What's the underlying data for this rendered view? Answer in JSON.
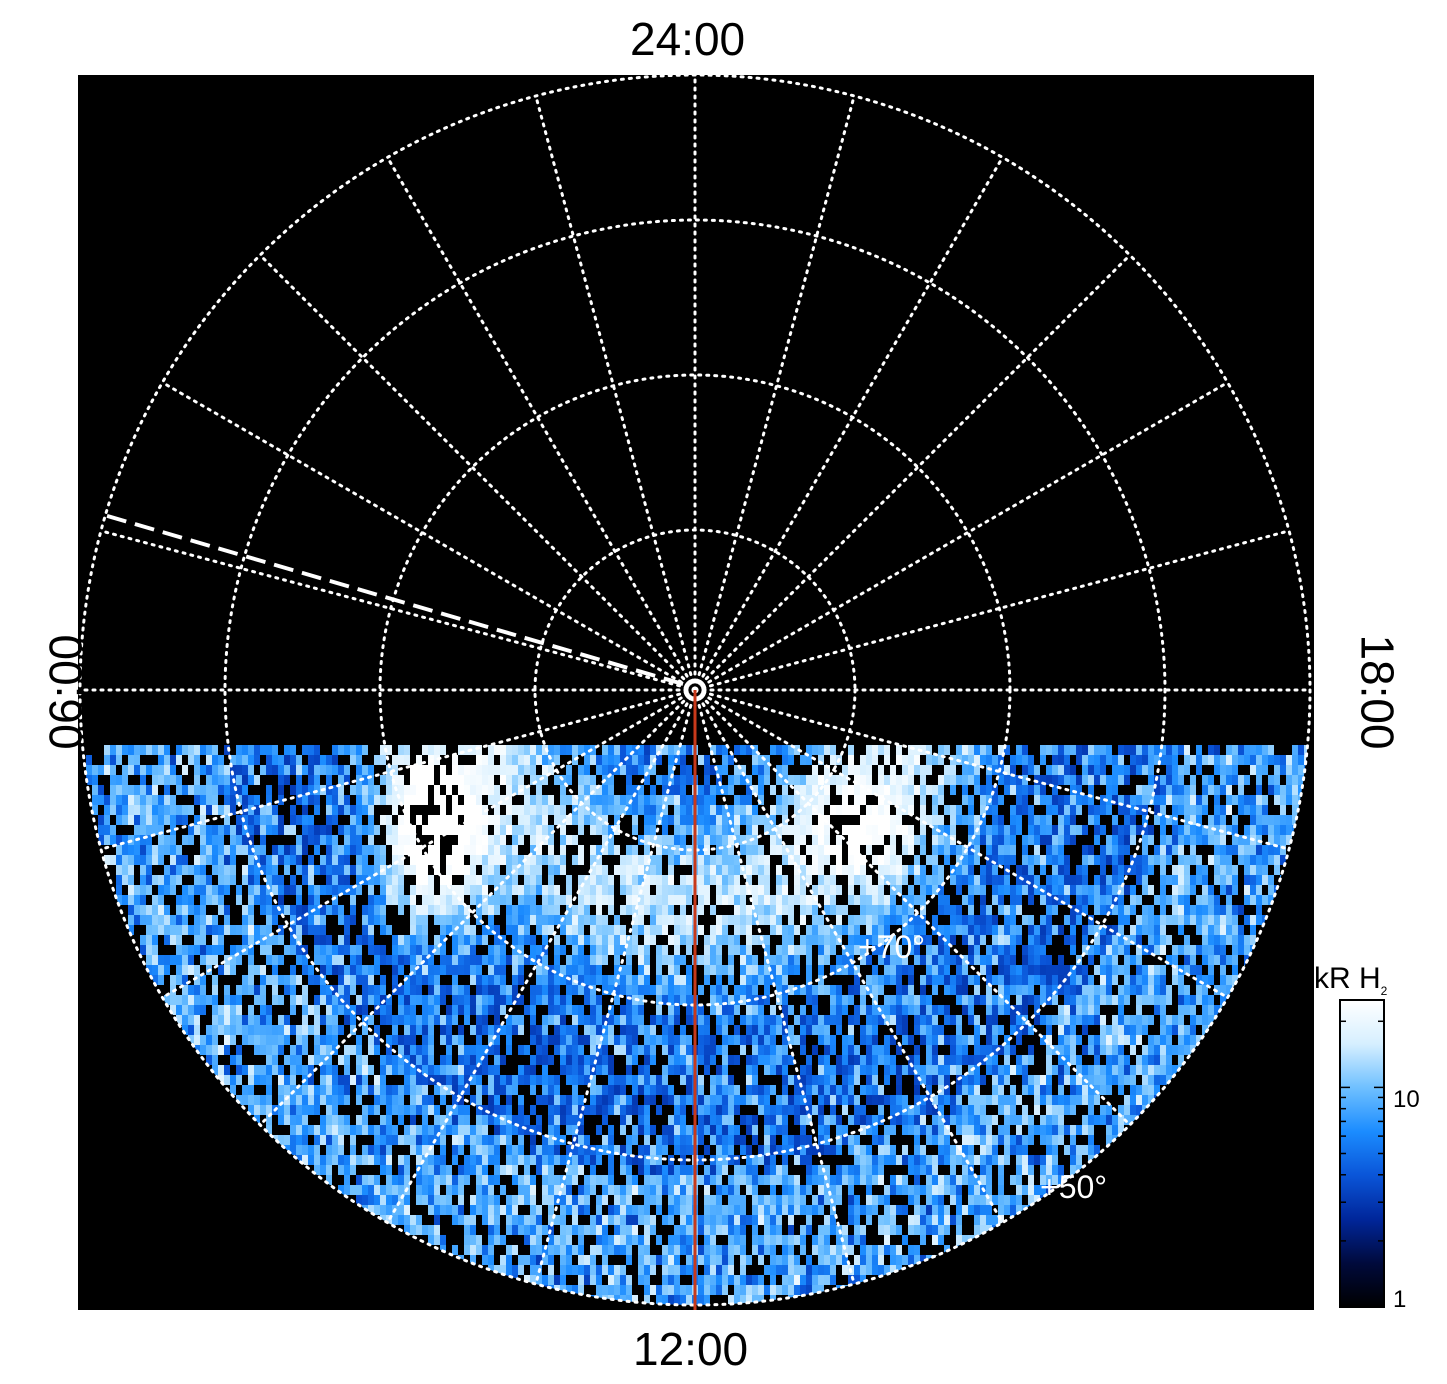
{
  "chart_data": {
    "type": "heatmap",
    "projection": "polar",
    "local_time_labels": {
      "top": "24:00",
      "bottom": "12:00",
      "left": "06:00",
      "right": "18:00"
    },
    "latitude_labels": [
      "+70°",
      "+50°"
    ],
    "colorbar": {
      "title": "kR H",
      "title_subscript": "2",
      "scale": "log",
      "range": [
        1,
        25
      ],
      "tick_labels": [
        {
          "value": 1,
          "label": "1"
        },
        {
          "value": 10,
          "label": "10"
        }
      ],
      "colors": [
        "#000000",
        "#000a3c",
        "#00269a",
        "#0a55d8",
        "#1b8cff",
        "#6fc0ff",
        "#d6efff",
        "#ffffff"
      ]
    },
    "grid": true,
    "grid_latitude_rings_deg": [
      90,
      80,
      70,
      60,
      50
    ],
    "grid_local_time_step_hours": 1,
    "observed_region": "dayside hemisphere (approx. 06:00–18:00 via 12:00)",
    "features": [
      {
        "name": "bright emission patch",
        "local_time": "~08:30",
        "latitude": "~72°",
        "brightness": "saturated (>25 kR)"
      },
      {
        "name": "bright arc",
        "local_time": "~14:00",
        "latitude": "~72°",
        "brightness": "~15–20 kR"
      }
    ],
    "reference_lines": [
      {
        "style": "solid",
        "color": "#c8391a",
        "local_time": "12:00"
      },
      {
        "style": "dashed",
        "color": "#ffffff",
        "local_time": "~05:00"
      }
    ]
  }
}
